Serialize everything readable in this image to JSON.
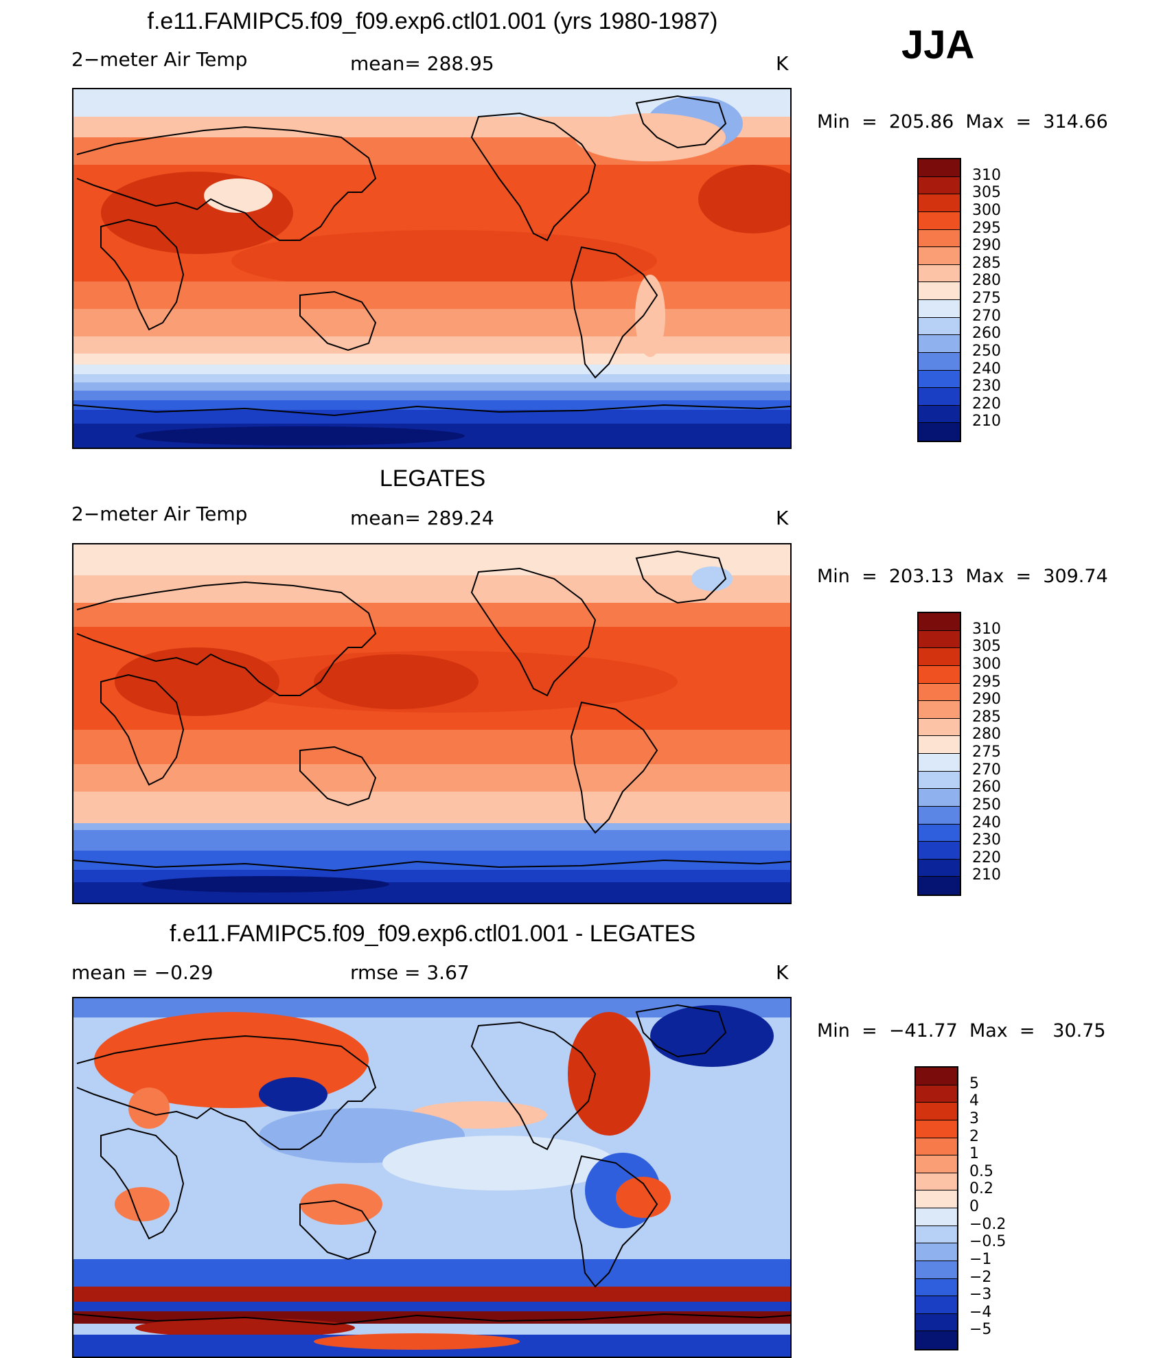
{
  "season": "JJA",
  "panels": [
    {
      "id": "model",
      "title": "f.e11.FAMIPC5.f09_f09.exp6.ctl01.001 (yrs 1980-1987)",
      "left_label": "2−meter Air Temp",
      "center_label": "mean= 288.95",
      "units": "K",
      "minmax": "Min  =  205.86  Max  =  314.66",
      "colorbar": {
        "labels": [
          "310",
          "305",
          "300",
          "295",
          "290",
          "285",
          "280",
          "275",
          "270",
          "260",
          "250",
          "240",
          "230",
          "220",
          "210"
        ],
        "colors": [
          "#7a0c0c",
          "#a81b0d",
          "#d4330f",
          "#f05121",
          "#f77a4a",
          "#fa9e76",
          "#fcc3a6",
          "#fde3d2",
          "#dbe9f9",
          "#b7d0f5",
          "#8fb1ee",
          "#5b86e6",
          "#2f5fdc",
          "#1a3fc4",
          "#0c249a",
          "#051373"
        ]
      }
    },
    {
      "id": "obs",
      "title": "LEGATES",
      "left_label": "2−meter Air Temp",
      "center_label": "mean= 289.24",
      "units": "K",
      "minmax": "Min  =  203.13  Max  =  309.74",
      "colorbar": {
        "labels": [
          "310",
          "305",
          "300",
          "295",
          "290",
          "285",
          "280",
          "275",
          "270",
          "260",
          "250",
          "240",
          "230",
          "220",
          "210"
        ],
        "colors": [
          "#7a0c0c",
          "#a81b0d",
          "#d4330f",
          "#f05121",
          "#f77a4a",
          "#fa9e76",
          "#fcc3a6",
          "#fde3d2",
          "#dbe9f9",
          "#b7d0f5",
          "#8fb1ee",
          "#5b86e6",
          "#2f5fdc",
          "#1a3fc4",
          "#0c249a",
          "#051373"
        ]
      }
    },
    {
      "id": "diff",
      "title": "f.e11.FAMIPC5.f09_f09.exp6.ctl01.001 - LEGATES",
      "left_label": "mean =   −0.29",
      "center_label": "rmse =    3.67",
      "units": "K",
      "minmax": "Min  =  −41.77  Max  =   30.75",
      "colorbar": {
        "labels": [
          "5",
          "4",
          "3",
          "2",
          "1",
          "0.5",
          "0.2",
          "0",
          "−0.2",
          "−0.5",
          "−1",
          "−2",
          "−3",
          "−4",
          "−5"
        ],
        "colors": [
          "#7a0c0c",
          "#a81b0d",
          "#d4330f",
          "#f05121",
          "#f77a4a",
          "#fa9e76",
          "#fcc3a6",
          "#fde3d2",
          "#dbe9f9",
          "#b7d0f5",
          "#8fb1ee",
          "#5b86e6",
          "#2f5fdc",
          "#1a3fc4",
          "#0c249a",
          "#051373"
        ]
      }
    }
  ]
}
